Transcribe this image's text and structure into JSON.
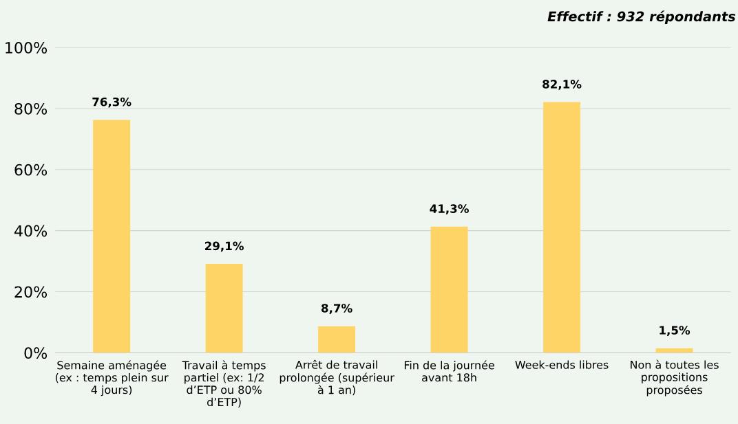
{
  "chart_data": {
    "type": "bar",
    "annotations": [
      "Effectif : 932 répondants"
    ],
    "categories": [
      "Semaine aménagée\n(ex : temps plein sur\n4 jours)",
      "Travail à temps\npartiel (ex: 1/2\nd’ETP ou 80%\nd’ETP)",
      "Arrêt de travail\nprolongée (supérieur\nà 1 an)",
      "Fin de la journée\navant 18h",
      "Week-ends libres",
      "Non à toutes les\npropositions\nproposées"
    ],
    "values": [
      76.3,
      29.1,
      8.7,
      41.3,
      82.1,
      1.5
    ],
    "value_labels": [
      "76,3%",
      "29,1%",
      "8,7%",
      "41,3%",
      "82,1%",
      "1,5%"
    ],
    "color": "#ffd466",
    "ylim": [
      0,
      100
    ],
    "yticks": [
      {
        "value": 0,
        "label": "0%"
      },
      {
        "value": 20,
        "label": "20%"
      },
      {
        "value": 40,
        "label": "40%"
      },
      {
        "value": 60,
        "label": "60%"
      },
      {
        "value": 80,
        "label": "80%"
      },
      {
        "value": 100,
        "label": "100%"
      }
    ],
    "grid": "y",
    "legend": false
  }
}
